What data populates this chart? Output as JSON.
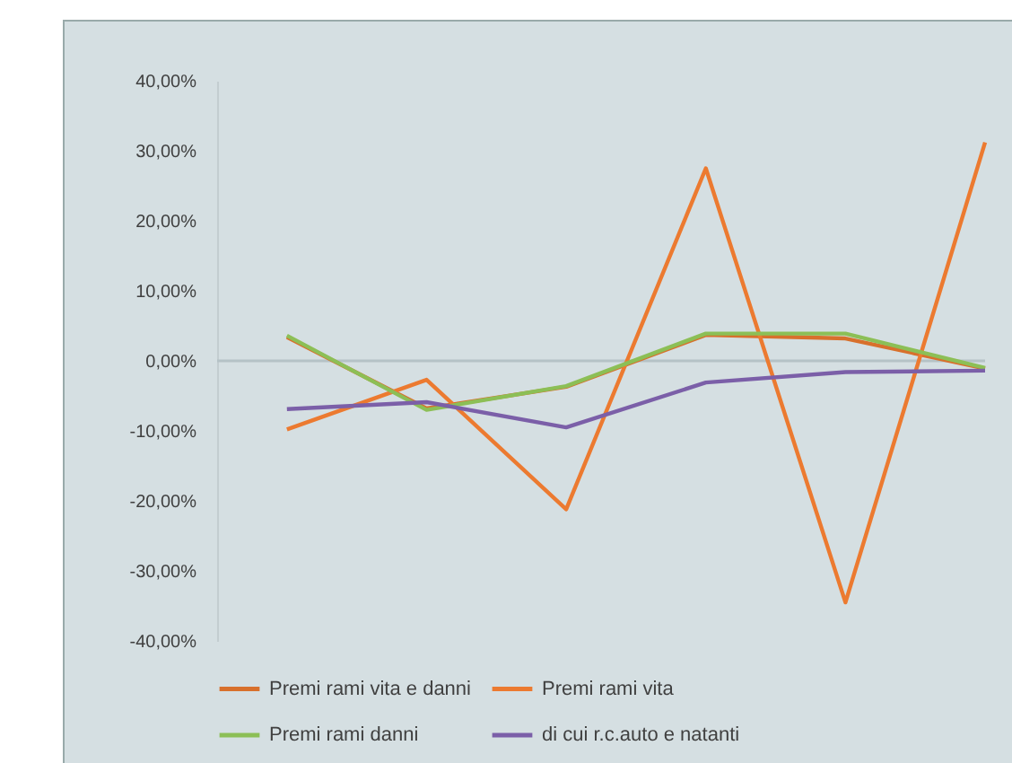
{
  "chart_data": {
    "type": "line",
    "categories": [
      null,
      null,
      null,
      null,
      null,
      null
    ],
    "series": [
      {
        "name": "Premi rami vita e danni",
        "color": "#d8702c",
        "values": [
          3.4,
          -6.8,
          -3.7,
          3.7,
          3.2,
          -1.1
        ]
      },
      {
        "name": "Premi rami vita",
        "color": "#ec7a30",
        "values": [
          -9.8,
          -2.7,
          -21.2,
          27.5,
          -34.5,
          31.2
        ]
      },
      {
        "name": "Premi rami danni",
        "color": "#8cbf56",
        "values": [
          3.6,
          -7.0,
          -3.6,
          3.9,
          3.9,
          -1.0
        ]
      },
      {
        "name": "di cui r.c.auto e natanti",
        "color": "#7b5fa8",
        "values": [
          -6.9,
          -5.9,
          -9.5,
          -3.1,
          -1.6,
          -1.4
        ]
      }
    ],
    "ylim": [
      -40,
      40
    ],
    "yticks": [
      {
        "value": -40,
        "label": "-40,00%"
      },
      {
        "value": -30,
        "label": "-30,00%"
      },
      {
        "value": -20,
        "label": "-20,00%"
      },
      {
        "value": -10,
        "label": "-10,00%"
      },
      {
        "value": 0,
        "label": "0,00%"
      },
      {
        "value": 10,
        "label": "10,00%"
      },
      {
        "value": 20,
        "label": "20,00%"
      },
      {
        "value": 30,
        "label": "30,00%"
      },
      {
        "value": 40,
        "label": "40,00%"
      }
    ],
    "ref_lines": [
      {
        "axis": "y",
        "value": 0,
        "color": "#b5c2c6"
      }
    ],
    "grid": false,
    "legend": "bottom",
    "marker": "none",
    "line_style": "solid"
  }
}
